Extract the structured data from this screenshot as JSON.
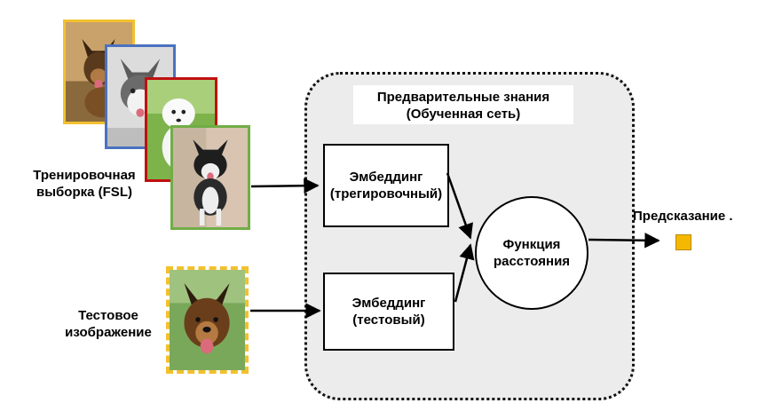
{
  "labels": {
    "training_set": "Тренировочная\nвыборка (FSL)",
    "test_image": "Тестовое\nизображение",
    "prior_knowledge": "Предварительные знания\n(Обученная сеть)",
    "embedding_train": "Эмбеддинг\n(трегировочный)",
    "embedding_test": "Эмбеддинг\n(тестовый)",
    "distance_function": "Функция\nрасстояния",
    "prediction": "Предсказание ."
  },
  "colors": {
    "card1_border": "#f2c12e",
    "card2_border": "#4a72c0",
    "card3_border": "#c01010",
    "card4_border": "#70ad47",
    "test_border": "#f2c12e",
    "prediction_square": "#f5b800",
    "region_fill": "#ececec"
  },
  "icons": {
    "card1": "german-shepherd-photo",
    "card2": "husky-photo",
    "card3": "samoyed-photo",
    "card4": "malamute-photo",
    "test": "german-shepherd-test-photo"
  }
}
